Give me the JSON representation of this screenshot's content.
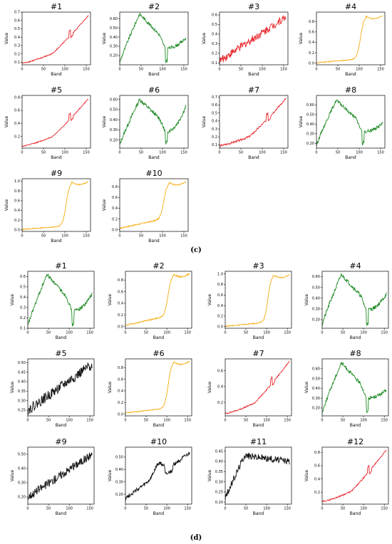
{
  "figure": {
    "panel_c_label": "(c)",
    "panel_d_label": "(d)"
  },
  "colors": {
    "red": "#e8252b",
    "green": "#1e8a23",
    "orange": "#f5ad10",
    "black": "#111111"
  },
  "chart_data": [
    {
      "panel": "c",
      "type": "line",
      "title": "#1",
      "xlabel": "Band",
      "ylabel": "Value",
      "color": "red",
      "shape": "veg_red",
      "xlim": [
        0,
        160
      ],
      "ylim": [
        0.07,
        0.7
      ],
      "xticks": [
        0,
        50,
        100,
        150
      ],
      "yticks": [
        0.1,
        0.2,
        0.3,
        0.4,
        0.5,
        0.6,
        0.7
      ],
      "start": 0.09,
      "end": 0.66,
      "noise": 0.004
    },
    {
      "panel": "c",
      "type": "line",
      "title": "#2",
      "xlabel": "Band",
      "ylabel": "Value",
      "color": "green",
      "shape": "hump",
      "xlim": [
        0,
        160
      ],
      "ylim": [
        0.1,
        0.67
      ],
      "xticks": [
        0,
        50,
        100,
        150
      ],
      "yticks": [
        0.2,
        0.3,
        0.4,
        0.5,
        0.6
      ],
      "start": 0.12,
      "peak": 0.65,
      "end": 0.39,
      "noise": 0.01
    },
    {
      "panel": "c",
      "type": "line",
      "title": "#3",
      "xlabel": "Band",
      "ylabel": "Value",
      "color": "red",
      "shape": "noisy_rise",
      "xlim": [
        0,
        160
      ],
      "ylim": [
        0.08,
        0.63
      ],
      "xticks": [
        0,
        50,
        100,
        150
      ],
      "yticks": [
        0.1,
        0.2,
        0.3,
        0.4,
        0.5,
        0.6
      ],
      "start": 0.12,
      "end": 0.58,
      "noise": 0.025
    },
    {
      "panel": "c",
      "type": "line",
      "title": "#4",
      "xlabel": "Band",
      "ylabel": "Value",
      "color": "orange",
      "shape": "sigmoid",
      "xlim": [
        0,
        160
      ],
      "ylim": [
        -0.03,
        0.98
      ],
      "xticks": [
        0,
        50,
        100,
        150
      ],
      "yticks": [
        0.0,
        0.2,
        0.4,
        0.6,
        0.8
      ],
      "start": 0.01,
      "mid": 0.08,
      "end": 0.9,
      "noise": 0.003
    },
    {
      "panel": "c",
      "type": "line",
      "title": "#5",
      "xlabel": "Band",
      "ylabel": "Value",
      "color": "red",
      "shape": "veg_red",
      "xlim": [
        0,
        160
      ],
      "ylim": [
        0.02,
        0.83
      ],
      "xticks": [
        0,
        50,
        100,
        150
      ],
      "yticks": [
        0.2,
        0.4,
        0.6,
        0.8
      ],
      "start": 0.05,
      "end": 0.78,
      "noise": 0.003
    },
    {
      "panel": "c",
      "type": "line",
      "title": "#6",
      "xlabel": "Band",
      "ylabel": "Value",
      "color": "green",
      "shape": "hump",
      "xlim": [
        0,
        160
      ],
      "ylim": [
        0.12,
        0.64
      ],
      "xticks": [
        0,
        50,
        100,
        150
      ],
      "yticks": [
        0.2,
        0.3,
        0.4,
        0.5,
        0.6
      ],
      "start": 0.15,
      "peak": 0.6,
      "end": 0.54,
      "noise": 0.012
    },
    {
      "panel": "c",
      "type": "line",
      "title": "#7",
      "xlabel": "Band",
      "ylabel": "Value",
      "color": "red",
      "shape": "veg_red",
      "xlim": [
        0,
        160
      ],
      "ylim": [
        0.06,
        0.72
      ],
      "xticks": [
        0,
        50,
        100,
        150
      ],
      "yticks": [
        0.1,
        0.2,
        0.3,
        0.4,
        0.5,
        0.6,
        0.7
      ],
      "start": 0.09,
      "end": 0.68,
      "noise": 0.006
    },
    {
      "panel": "c",
      "type": "line",
      "title": "#8",
      "xlabel": "Band",
      "ylabel": "Value",
      "color": "green",
      "shape": "hump",
      "xlim": [
        0,
        160
      ],
      "ylim": [
        0.15,
        0.7
      ],
      "xticks": [
        0,
        50,
        100,
        150
      ],
      "yticks": [
        0.2,
        0.3,
        0.4,
        0.5,
        0.6
      ],
      "start": 0.18,
      "peak": 0.65,
      "end": 0.41,
      "noise": 0.01
    },
    {
      "panel": "c",
      "type": "line",
      "title": "#9",
      "xlabel": "Band",
      "ylabel": "Value",
      "color": "orange",
      "shape": "sigmoid",
      "xlim": [
        0,
        160
      ],
      "ylim": [
        -0.03,
        1.05
      ],
      "xticks": [
        0,
        50,
        100,
        150
      ],
      "yticks": [
        0.0,
        0.2,
        0.4,
        0.6,
        0.8,
        1.0
      ],
      "start": 0.01,
      "mid": 0.08,
      "end": 0.98,
      "noise": 0.003
    },
    {
      "panel": "c",
      "type": "line",
      "title": "#10",
      "xlabel": "Band",
      "ylabel": "Value",
      "color": "orange",
      "shape": "sigmoid",
      "xlim": [
        0,
        160
      ],
      "ylim": [
        -0.03,
        0.95
      ],
      "xticks": [
        0,
        50,
        100,
        150
      ],
      "yticks": [
        0.0,
        0.2,
        0.4,
        0.6,
        0.8
      ],
      "start": 0.03,
      "mid": 0.2,
      "end": 0.88,
      "noise": 0.004
    },
    {
      "panel": "d",
      "type": "line",
      "title": "#1",
      "xlabel": "Band",
      "ylabel": "Value",
      "color": "green",
      "shape": "hump",
      "xlim": [
        0,
        160
      ],
      "ylim": [
        0.1,
        0.65
      ],
      "xticks": [
        0,
        50,
        100,
        150
      ],
      "yticks": [
        0.1,
        0.2,
        0.3,
        0.4,
        0.5,
        0.6
      ],
      "start": 0.12,
      "peak": 0.62,
      "end": 0.43,
      "noise": 0.01
    },
    {
      "panel": "d",
      "type": "line",
      "title": "#2",
      "xlabel": "Band",
      "ylabel": "Value",
      "color": "orange",
      "shape": "sigmoid",
      "xlim": [
        0,
        160
      ],
      "ylim": [
        -0.03,
        0.95
      ],
      "xticks": [
        0,
        50,
        100,
        150
      ],
      "yticks": [
        0.0,
        0.2,
        0.4,
        0.6,
        0.8
      ],
      "start": 0.02,
      "mid": 0.18,
      "end": 0.9,
      "noise": 0.004
    },
    {
      "panel": "d",
      "type": "line",
      "title": "#3",
      "xlabel": "Band",
      "ylabel": "Value",
      "color": "orange",
      "shape": "sigmoid",
      "xlim": [
        0,
        160
      ],
      "ylim": [
        -0.03,
        1.05
      ],
      "xticks": [
        0,
        50,
        100,
        150
      ],
      "yticks": [
        0.0,
        0.2,
        0.4,
        0.6,
        0.8,
        1.0
      ],
      "start": 0.01,
      "mid": 0.08,
      "end": 0.98,
      "noise": 0.003
    },
    {
      "panel": "d",
      "type": "line",
      "title": "#4",
      "xlabel": "Band",
      "ylabel": "Value",
      "color": "green",
      "shape": "hump",
      "xlim": [
        0,
        160
      ],
      "ylim": [
        0.12,
        0.65
      ],
      "xticks": [
        0,
        50,
        100,
        150
      ],
      "yticks": [
        0.2,
        0.3,
        0.4,
        0.5,
        0.6
      ],
      "start": 0.15,
      "peak": 0.62,
      "end": 0.44,
      "noise": 0.012
    },
    {
      "panel": "d",
      "type": "line",
      "title": "#5",
      "xlabel": "Band",
      "ylabel": "Value",
      "color": "black",
      "shape": "noisy_rise",
      "xlim": [
        0,
        160
      ],
      "ylim": [
        0.22,
        0.52
      ],
      "xticks": [
        0,
        50,
        100,
        150
      ],
      "yticks": [
        0.25,
        0.3,
        0.35,
        0.4,
        0.45,
        0.5
      ],
      "start": 0.25,
      "end": 0.49,
      "noise": 0.03
    },
    {
      "panel": "d",
      "type": "line",
      "title": "#6",
      "xlabel": "Band",
      "ylabel": "Value",
      "color": "orange",
      "shape": "sigmoid",
      "xlim": [
        0,
        160
      ],
      "ylim": [
        -0.03,
        0.95
      ],
      "xticks": [
        0,
        50,
        100,
        150
      ],
      "yticks": [
        0.0,
        0.2,
        0.4,
        0.6,
        0.8
      ],
      "start": 0.02,
      "mid": 0.1,
      "end": 0.9,
      "noise": 0.003
    },
    {
      "panel": "d",
      "type": "line",
      "title": "#7",
      "xlabel": "Band",
      "ylabel": "Value",
      "color": "red",
      "shape": "veg_red",
      "xlim": [
        0,
        160
      ],
      "ylim": [
        0.03,
        0.75
      ],
      "xticks": [
        0,
        50,
        100,
        150
      ],
      "yticks": [
        0.2,
        0.4,
        0.6
      ],
      "start": 0.06,
      "end": 0.72,
      "noise": 0.004
    },
    {
      "panel": "d",
      "type": "line",
      "title": "#8",
      "xlabel": "Band",
      "ylabel": "Value",
      "color": "green",
      "shape": "hump",
      "xlim": [
        0,
        160
      ],
      "ylim": [
        0.12,
        0.7
      ],
      "xticks": [
        0,
        50,
        100,
        150
      ],
      "yticks": [
        0.2,
        0.3,
        0.4,
        0.5,
        0.6
      ],
      "start": 0.15,
      "peak": 0.66,
      "end": 0.38,
      "noise": 0.01
    },
    {
      "panel": "d",
      "type": "line",
      "title": "#9",
      "xlabel": "Band",
      "ylabel": "Value",
      "color": "black",
      "shape": "noisy_rise",
      "xlim": [
        0,
        160
      ],
      "ylim": [
        0.15,
        0.55
      ],
      "xticks": [
        0,
        50,
        100,
        150
      ],
      "yticks": [
        0.2,
        0.3,
        0.4,
        0.5
      ],
      "start": 0.2,
      "end": 0.5,
      "noise": 0.025
    },
    {
      "panel": "d",
      "type": "line",
      "title": "#10",
      "xlabel": "Band",
      "ylabel": "Value",
      "color": "black",
      "shape": "bump_rise",
      "xlim": [
        0,
        160
      ],
      "ylim": [
        0.12,
        0.58
      ],
      "xticks": [
        0,
        50,
        100,
        150
      ],
      "yticks": [
        0.2,
        0.3,
        0.4,
        0.5
      ],
      "start": 0.17,
      "end": 0.53,
      "noise": 0.012
    },
    {
      "panel": "d",
      "type": "line",
      "title": "#11",
      "xlabel": "Band",
      "ylabel": "Value",
      "color": "black",
      "shape": "plateau",
      "xlim": [
        0,
        160
      ],
      "ylim": [
        0.19,
        0.47
      ],
      "xticks": [
        0,
        50,
        100,
        150
      ],
      "yticks": [
        0.2,
        0.25,
        0.3,
        0.35,
        0.4,
        0.45
      ],
      "start": 0.22,
      "peak": 0.43,
      "end": 0.4,
      "noise": 0.02
    },
    {
      "panel": "d",
      "type": "line",
      "title": "#12",
      "xlabel": "Band",
      "ylabel": "Value",
      "color": "red",
      "shape": "veg_red",
      "xlim": [
        0,
        160
      ],
      "ylim": [
        0.02,
        0.88
      ],
      "xticks": [
        0,
        50,
        100,
        150
      ],
      "yticks": [
        0.2,
        0.4,
        0.6,
        0.8
      ],
      "start": 0.06,
      "end": 0.84,
      "noise": 0.004
    }
  ]
}
